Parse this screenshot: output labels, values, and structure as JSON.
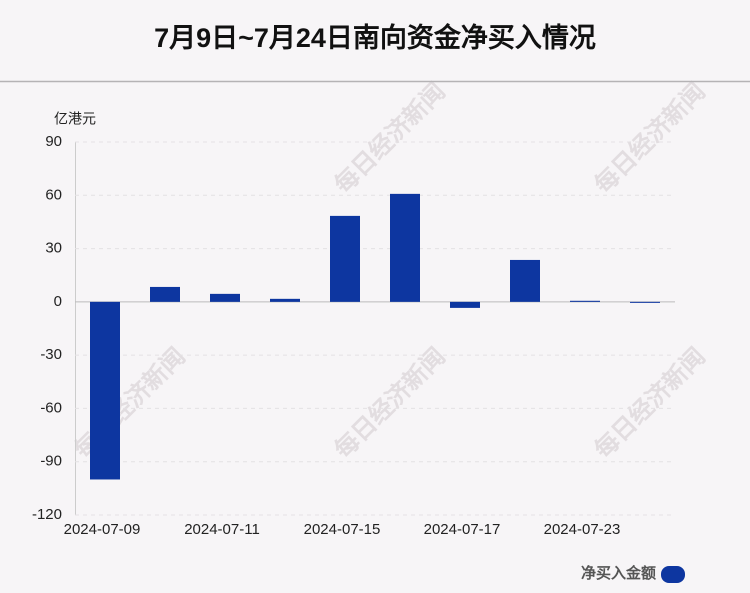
{
  "chart_data": {
    "type": "bar",
    "title": "7月9日~7月24日南向资金净买入情况",
    "y_axis_label": "亿港元",
    "watermark": "每日经济新闻",
    "categories": [
      "2024-07-09",
      null,
      "2024-07-11",
      null,
      "2024-07-15",
      null,
      "2024-07-17",
      null,
      "2024-07-23",
      null
    ],
    "series": [
      {
        "name": "净买入金额",
        "color": "#0d36a0",
        "values": [
          -100,
          8.4,
          4.5,
          1.7,
          48.4,
          60.8,
          -3.4,
          23.6,
          0.6,
          -0.5
        ]
      }
    ],
    "ylim": [
      -120,
      90
    ],
    "yticks": [
      -120,
      -90,
      -60,
      -30,
      0,
      30,
      60,
      90
    ],
    "grid": true
  }
}
